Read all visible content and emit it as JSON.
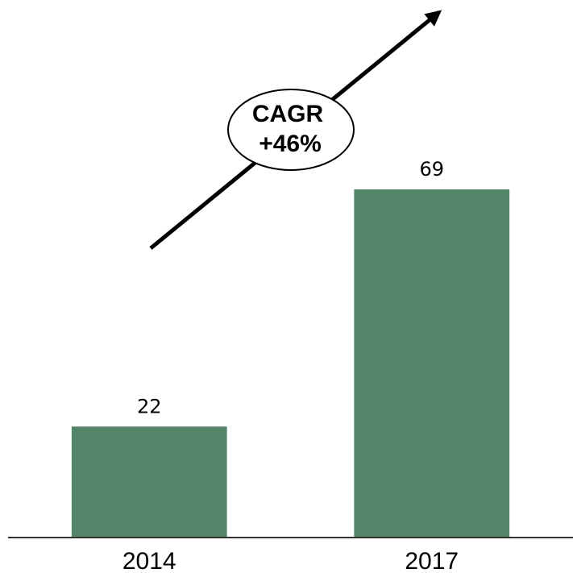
{
  "chart_data": {
    "type": "bar",
    "categories": [
      "2014",
      "2017"
    ],
    "values": [
      22,
      69
    ],
    "color": "#558569",
    "annotation": [
      "CAGR",
      "+46%"
    ]
  }
}
